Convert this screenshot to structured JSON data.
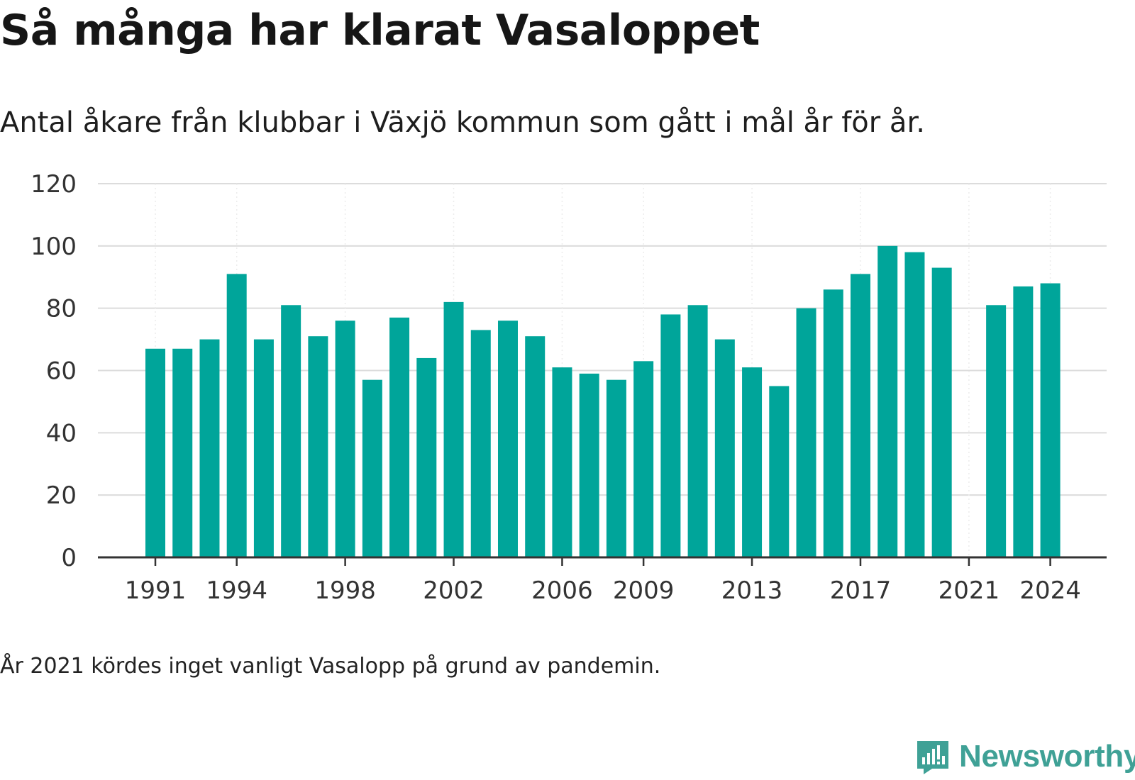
{
  "title": "Så många har klarat Vasaloppet",
  "subtitle": "Antal åkare från klubbar i Växjö kommun som gått i mål år för år.",
  "note": "År 2021 kördes inget vanligt Vasalopp på grund av pandemin.",
  "brand": {
    "name": "Newsworthy",
    "color": "#3fa196"
  },
  "chart_data": {
    "type": "bar",
    "bar_color": "#00a59a",
    "x": [
      1991,
      1992,
      1993,
      1994,
      1995,
      1996,
      1997,
      1998,
      1999,
      2000,
      2001,
      2002,
      2003,
      2004,
      2005,
      2006,
      2007,
      2008,
      2009,
      2010,
      2011,
      2012,
      2013,
      2014,
      2015,
      2016,
      2017,
      2018,
      2019,
      2020,
      2021,
      2022,
      2023,
      2024
    ],
    "values": [
      67,
      67,
      70,
      91,
      70,
      81,
      71,
      76,
      57,
      77,
      64,
      82,
      73,
      76,
      71,
      61,
      59,
      57,
      63,
      78,
      81,
      70,
      61,
      55,
      80,
      86,
      91,
      100,
      98,
      93,
      null,
      81,
      87,
      88
    ],
    "x_tick_labels": [
      "1991",
      "1994",
      "1998",
      "2002",
      "2006",
      "2009",
      "2013",
      "2017",
      "2021",
      "2024"
    ],
    "y_ticks": [
      0,
      20,
      40,
      60,
      80,
      100,
      120
    ],
    "ylim": [
      0,
      120
    ],
    "grid": true
  }
}
